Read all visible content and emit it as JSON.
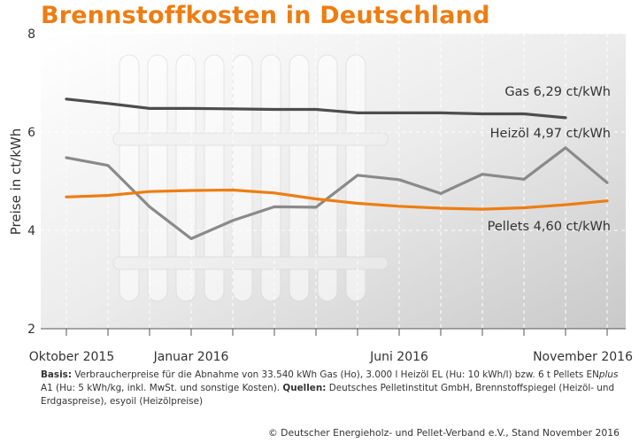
{
  "colors": {
    "title": "#ee7d11",
    "gas": "#4d4d4d",
    "heizoel": "#8a8a8a",
    "pellets": "#ee7d11"
  },
  "title": "Brennstoffkosten in Deutschland",
  "chart_data": {
    "type": "line",
    "ylabel": "Preise in ct/kWh",
    "ylim": [
      2,
      8
    ],
    "yticks": [
      2,
      4,
      6,
      8
    ],
    "grid": true,
    "x": [
      "2015-10",
      "2015-11",
      "2015-12",
      "2016-01",
      "2016-02",
      "2016-03",
      "2016-04",
      "2016-05",
      "2016-06",
      "2016-07",
      "2016-08",
      "2016-09",
      "2016-10",
      "2016-11"
    ],
    "xtick_labels": [
      {
        "label": "Oktober 2015",
        "at": "2015-10"
      },
      {
        "label": "Januar 2016",
        "at": "2016-01"
      },
      {
        "label": "Juni 2016",
        "at": "2016-06"
      },
      {
        "label": "November 2016",
        "at": "2016-11"
      }
    ],
    "series": [
      {
        "name": "Gas",
        "value_label": "6,29 ct/kWh",
        "color": "#4d4d4d",
        "values": [
          6.67,
          6.58,
          6.48,
          6.48,
          6.47,
          6.46,
          6.46,
          6.39,
          6.39,
          6.39,
          6.37,
          6.37,
          6.29,
          null
        ]
      },
      {
        "name": "Heizöl",
        "value_label": "4,97 ct/kWh",
        "color": "#8a8a8a",
        "values": [
          5.48,
          5.32,
          4.48,
          3.83,
          4.2,
          4.48,
          4.47,
          5.12,
          5.03,
          4.75,
          5.14,
          5.04,
          5.68,
          4.97
        ]
      },
      {
        "name": "Pellets",
        "value_label": "4,60 ct/kWh",
        "color": "#ee7d11",
        "values": [
          4.68,
          4.71,
          4.79,
          4.81,
          4.82,
          4.76,
          4.64,
          4.55,
          4.49,
          4.45,
          4.43,
          4.46,
          4.52,
          4.6
        ]
      }
    ]
  },
  "footnote": {
    "basis_label": "Basis:",
    "basis_text_1": " Verbraucherpreise für die Abnahme von 33.540 kWh Gas (Ho), 3.000 l Heizöl EL (Hu: 10 kWh/l) bzw. 6 t Pellets EN",
    "basis_italic": "plus",
    "basis_text_2": " A1 (Hu: 5 kWh/kg, inkl. MwSt. und sonstige Kosten). ",
    "sources_label": "Quellen:",
    "sources_text": " Deutsches Pelletinstitut GmbH, Brennstoffspiegel (Heizöl- und Erdgaspreise), esyoil (Heizölpreise)"
  },
  "copyright": "© Deutscher Energieholz- und Pellet-Verband e.V., Stand November 2016"
}
